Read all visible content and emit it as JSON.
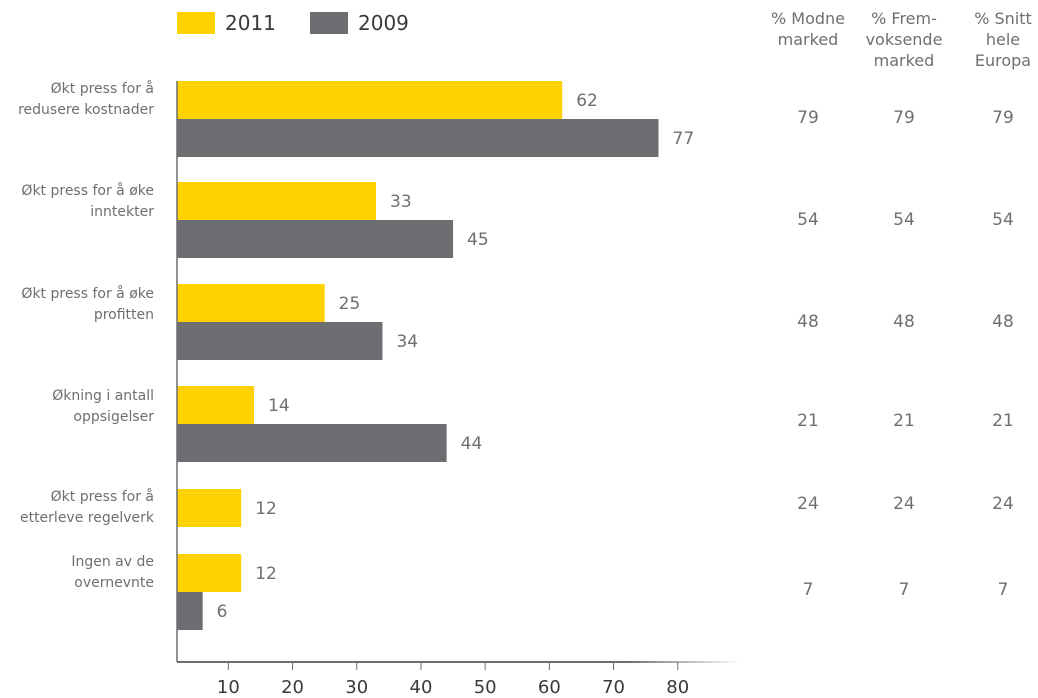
{
  "legend": [
    {
      "label": "2011",
      "color": "#FFD200"
    },
    {
      "label": "2009",
      "color": "#6D6E71"
    }
  ],
  "table": {
    "headers": [
      "% Modne\nmarked",
      "% Frem-\nvoksende\nmarked",
      "% Snitt\nhele\nEuropa"
    ],
    "rows": [
      [
        "79",
        "79",
        "79"
      ],
      [
        "54",
        "54",
        "54"
      ],
      [
        "48",
        "48",
        "48"
      ],
      [
        "21",
        "21",
        "21"
      ],
      [
        "24",
        "24",
        "24"
      ],
      [
        "7",
        "7",
        "7"
      ]
    ]
  },
  "chart_data": {
    "type": "bar",
    "orientation": "horizontal",
    "categories": [
      "Økt press for å\nredusere kostnader",
      "Økt press for å øke\ninntekter",
      "Økt press for å øke\nprofitten",
      "Økning i antall\noppsigelser",
      "Økt press for å\netterleve regelverk",
      "Ingen av de\novernevnte"
    ],
    "series": [
      {
        "name": "2011",
        "color": "#FFD200",
        "values": [
          62,
          33,
          25,
          14,
          12,
          12
        ]
      },
      {
        "name": "2009",
        "color": "#6D6E71",
        "values": [
          77,
          45,
          34,
          44,
          null,
          6
        ]
      }
    ],
    "xlim": [
      2,
      84
    ],
    "xticks": [
      10,
      20,
      30,
      40,
      50,
      60,
      70,
      80
    ],
    "grid": false,
    "legend_position": "top-left"
  }
}
